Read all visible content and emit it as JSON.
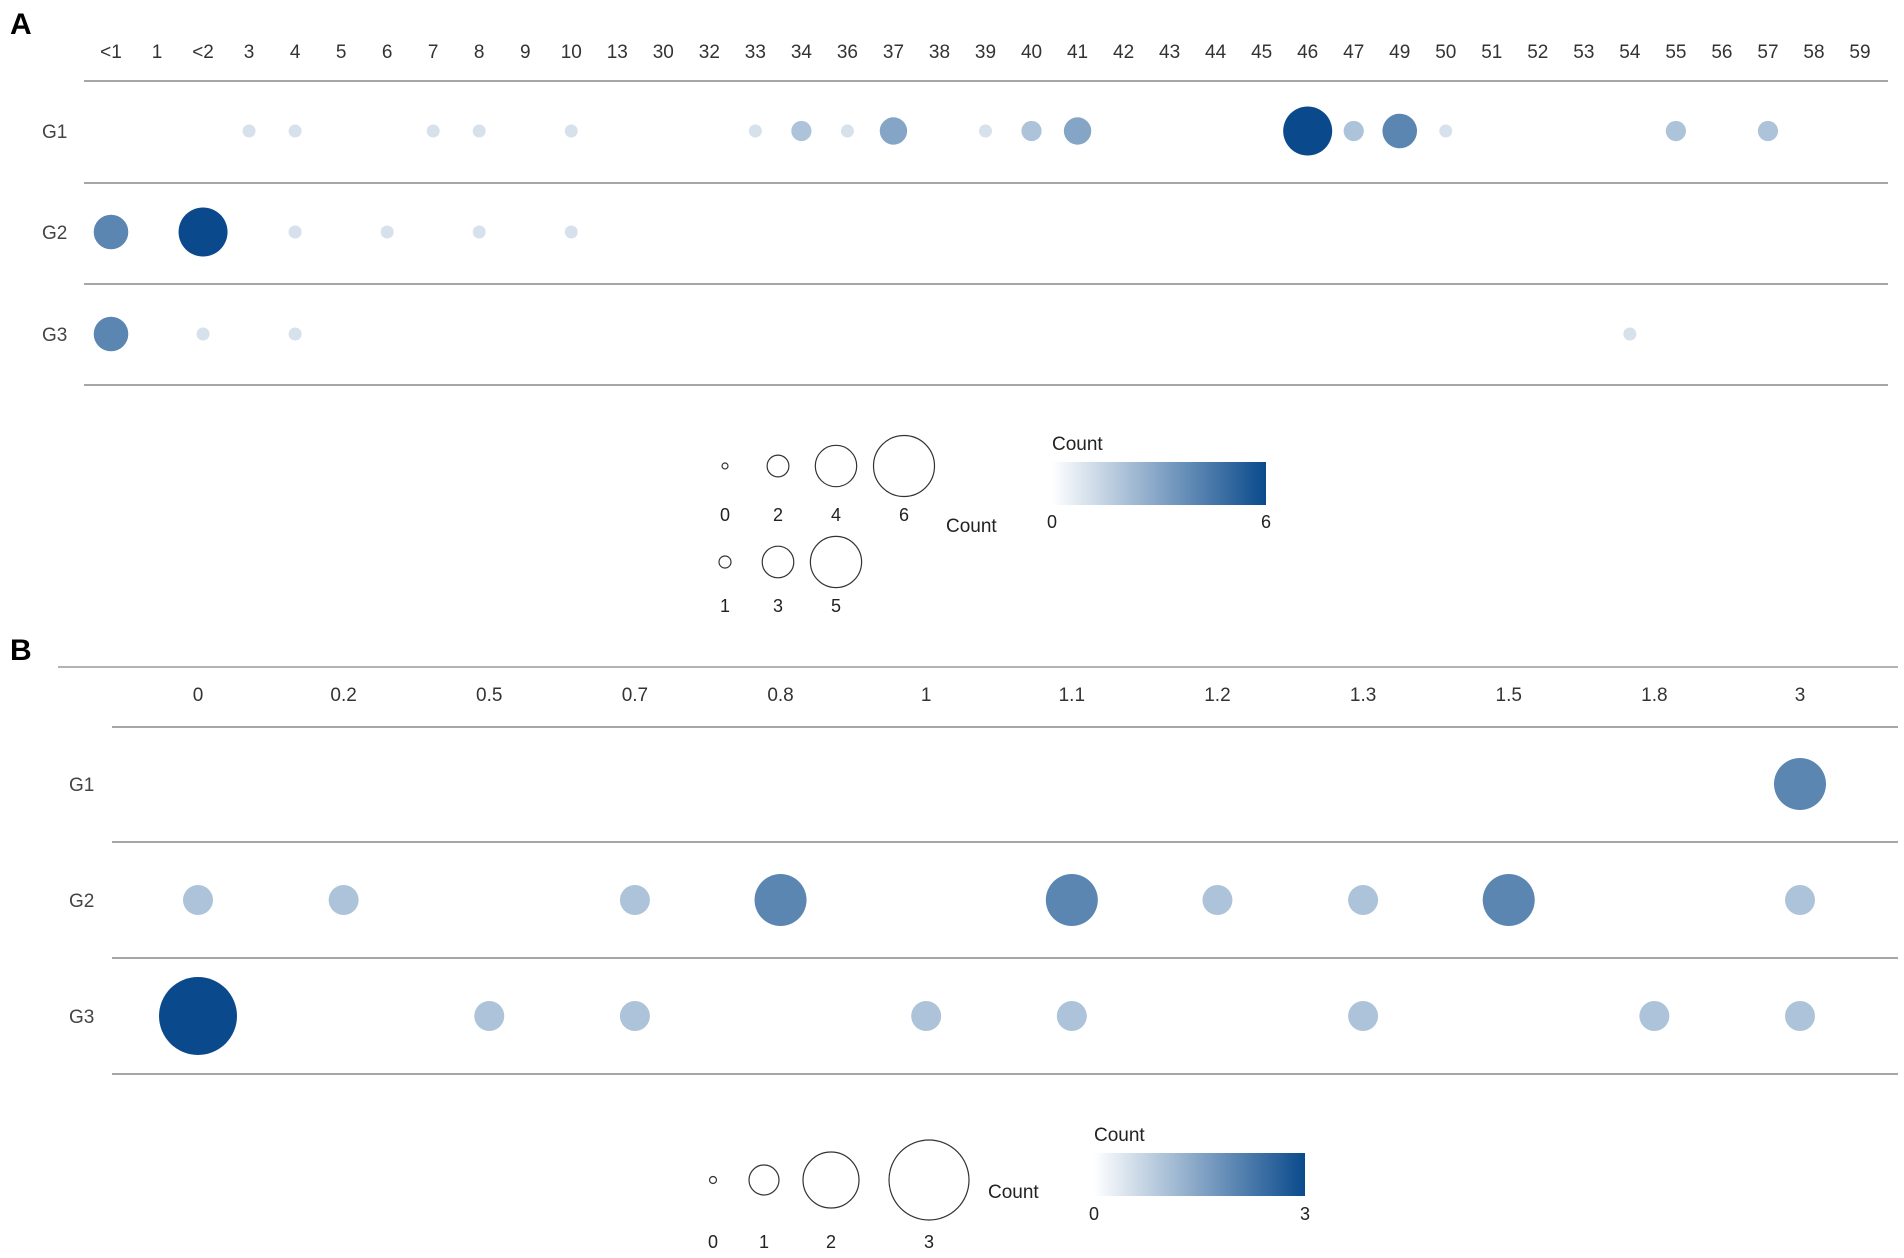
{
  "chart_data": [
    {
      "panel": "A",
      "type": "scatter",
      "categories": [
        "<1",
        "1",
        "<2",
        "3",
        "4",
        "5",
        "6",
        "7",
        "8",
        "9",
        "10",
        "13",
        "30",
        "32",
        "33",
        "34",
        "36",
        "37",
        "38",
        "39",
        "40",
        "41",
        "42",
        "43",
        "44",
        "45",
        "46",
        "47",
        "49",
        "50",
        "51",
        "52",
        "53",
        "54",
        "55",
        "56",
        "57",
        "58",
        "59"
      ],
      "rows": [
        "G1",
        "G2",
        "G3"
      ],
      "series": [
        {
          "name": "G1",
          "values": [
            0,
            0,
            0,
            1,
            1,
            0,
            0,
            1,
            1,
            0,
            1,
            0,
            0,
            0,
            1,
            2,
            1,
            3,
            0,
            1,
            2,
            3,
            0,
            0,
            0,
            0,
            6,
            2,
            4,
            1,
            0,
            0,
            0,
            0,
            2,
            0,
            2,
            0,
            0
          ]
        },
        {
          "name": "G2",
          "values": [
            4,
            0,
            6,
            0,
            1,
            0,
            1,
            0,
            1,
            0,
            1,
            0,
            0,
            0,
            0,
            0,
            0,
            0,
            0,
            0,
            0,
            0,
            0,
            0,
            0,
            0,
            0,
            0,
            0,
            0,
            0,
            0,
            0,
            0,
            0,
            0,
            0,
            0,
            0
          ]
        },
        {
          "name": "G3",
          "values": [
            4,
            0,
            1,
            0,
            1,
            0,
            0,
            0,
            0,
            0,
            0,
            0,
            0,
            0,
            0,
            0,
            0,
            0,
            0,
            0,
            0,
            0,
            0,
            0,
            0,
            0,
            0,
            0,
            0,
            0,
            0,
            0,
            0,
            1,
            0,
            0,
            0,
            0,
            0
          ]
        }
      ],
      "size_legend": {
        "title": "Count",
        "row1": [
          "0",
          "2",
          "4",
          "6"
        ],
        "row2": [
          "1",
          "3",
          "5"
        ]
      },
      "color_legend": {
        "title": "Count",
        "min": "0",
        "max": "6"
      }
    },
    {
      "panel": "B",
      "type": "scatter",
      "categories": [
        "0",
        "0.2",
        "0.5",
        "0.7",
        "0.8",
        "1",
        "1.1",
        "1.2",
        "1.3",
        "1.5",
        "1.8",
        "3"
      ],
      "rows": [
        "G1",
        "G2",
        "G3"
      ],
      "series": [
        {
          "name": "G1",
          "values": [
            0,
            0,
            0,
            0,
            0,
            0,
            0,
            0,
            0,
            0,
            0,
            2
          ]
        },
        {
          "name": "G2",
          "values": [
            1,
            1,
            0,
            1,
            2,
            0,
            2,
            1,
            1,
            2,
            0,
            1
          ]
        },
        {
          "name": "G3",
          "values": [
            3,
            0,
            1,
            1,
            0,
            1,
            1,
            0,
            1,
            0,
            1,
            1
          ]
        }
      ],
      "size_legend": {
        "title": "Count",
        "row1": [
          "0",
          "1",
          "2",
          "3"
        ]
      },
      "color_legend": {
        "title": "Count",
        "min": "0",
        "max": "3"
      }
    }
  ],
  "colors": {
    "low": "#ffffff",
    "high": "#0a4a8c",
    "rule": "#9a9a9a"
  }
}
